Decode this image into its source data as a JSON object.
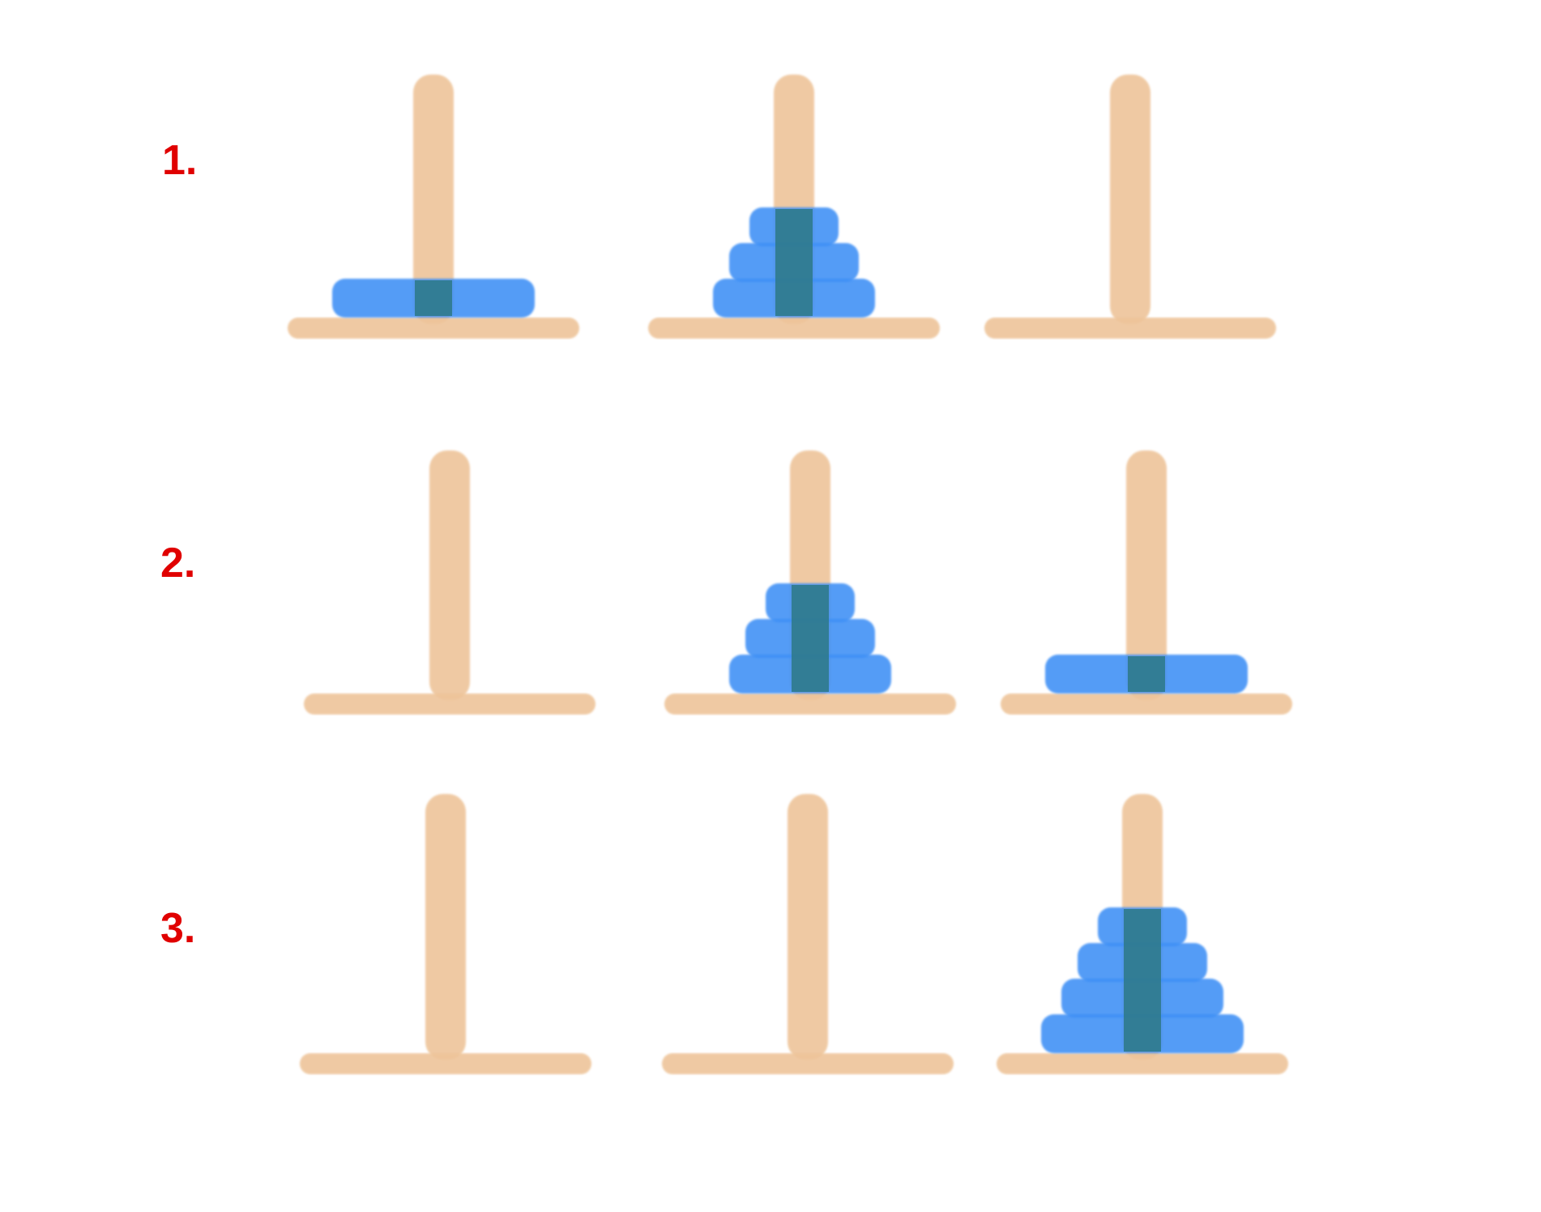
{
  "colors": {
    "background": "#ffffff",
    "label": "#e00000",
    "peg": "#eec49a",
    "disk": "#3d8ff5",
    "overlap": "#2f7a8c"
  },
  "steps": [
    {
      "label": "1.",
      "pegs": [
        {
          "disks": [
            4
          ]
        },
        {
          "disks": [
            3,
            2,
            1
          ]
        },
        {
          "disks": []
        }
      ]
    },
    {
      "label": "2.",
      "pegs": [
        {
          "disks": []
        },
        {
          "disks": [
            3,
            2,
            1
          ]
        },
        {
          "disks": [
            4
          ]
        }
      ]
    },
    {
      "label": "3.",
      "pegs": [
        {
          "disks": []
        },
        {
          "disks": []
        },
        {
          "disks": [
            4,
            3,
            2,
            1
          ]
        }
      ]
    }
  ]
}
